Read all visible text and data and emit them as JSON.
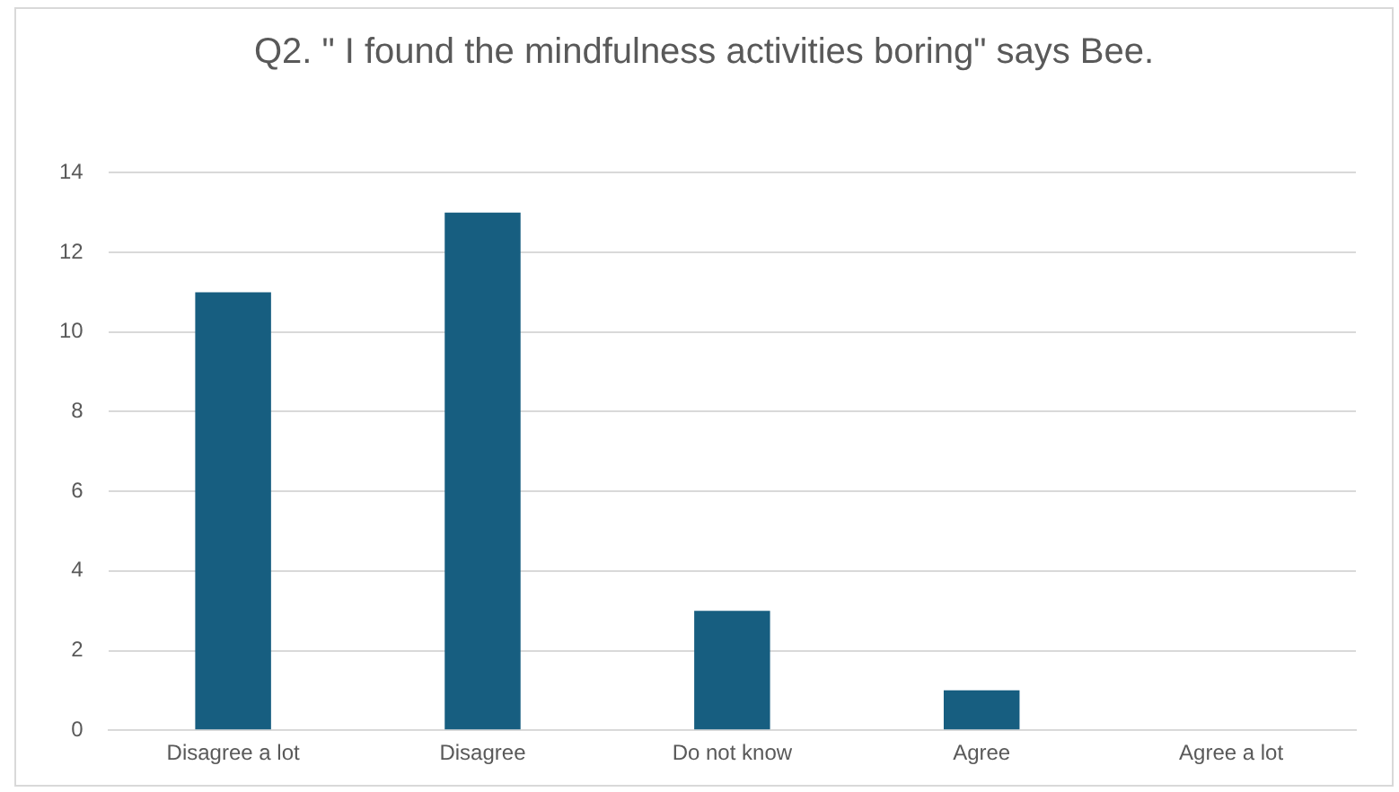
{
  "chart_data": {
    "type": "bar",
    "title": "Q2. \" I found the mindfulness activities boring\" says Bee.",
    "categories": [
      "Disagree a lot",
      "Disagree",
      "Do not know",
      "Agree",
      "Agree a lot"
    ],
    "values": [
      11,
      13,
      3,
      1,
      0
    ],
    "color": "#175e80",
    "ylim": [
      0,
      14
    ],
    "yticks": [
      0,
      2,
      4,
      6,
      8,
      10,
      12,
      14
    ],
    "grid": "y",
    "legend": false
  }
}
